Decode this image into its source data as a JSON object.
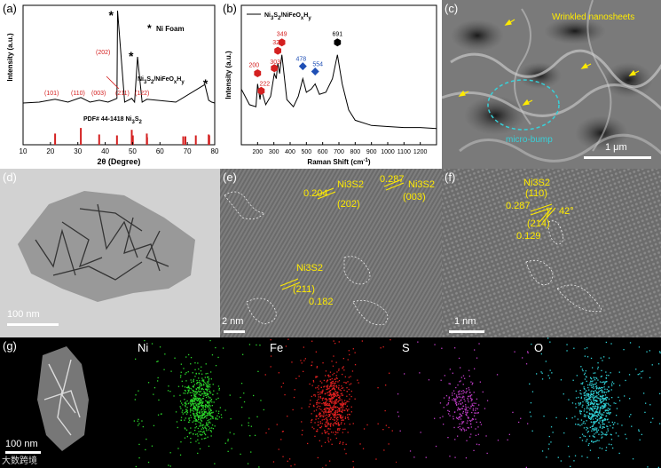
{
  "panels": {
    "a": {
      "label": "(a)",
      "legend_foam": "Ni Foam",
      "sample_label": "Ni3S2/NiFeOxHy",
      "pdf_label": "PDF# 44-1418 Ni3S2",
      "peak_labels": [
        "(101)",
        "(110)",
        "(003)",
        "(202)",
        "(211)",
        "(122)"
      ]
    },
    "b": {
      "label": "(b)",
      "legend": "Ni3S2/NiFeOxHy",
      "peak_labels": [
        "200",
        "222",
        "303",
        "324",
        "349",
        "478",
        "554",
        "691"
      ]
    },
    "c": {
      "label": "(c)",
      "annot_wrinkled": "Wrinkled nanosheets",
      "annot_bump": "micro-bump",
      "scale_bar": "1 μm"
    },
    "d": {
      "label": "(d)",
      "scale_bar": "100 nm"
    },
    "e": {
      "label": "(e)",
      "spacing_1": "0.204",
      "phase_1": "Ni3S2",
      "plane_1": "(202)",
      "spacing_2": "0.287",
      "phase_2": "Ni3S2",
      "plane_2": "(003)",
      "phase_3": "Ni3S2",
      "plane_3": "(211)",
      "spacing_3": "0.182",
      "scale_bar": "2 nm"
    },
    "f": {
      "label": "(f)",
      "phase": "Ni3S2",
      "plane_1": "(110)",
      "spacing_1": "0.287",
      "angle": "42°",
      "plane_2": "(214)",
      "spacing_2": "0.129",
      "scale_bar": "1 nm"
    },
    "g": {
      "label": "(g)",
      "scale_bar": "100 nm",
      "elements": [
        "Ni",
        "Fe",
        "S",
        "O"
      ],
      "logo": "大数跨境"
    }
  },
  "colors": {
    "red": "#d42020",
    "blue": "#1f4fb5",
    "yellow": "#ffeb00",
    "cyan": "#38d0d8",
    "ni_map": "#2bd82b",
    "fe_map": "#e02020",
    "s_map": "#c03cc8",
    "o_map": "#30d2d8"
  },
  "chart_data": [
    {
      "type": "line",
      "panel": "a",
      "xlabel": "2θ (Degree)",
      "ylabel": "Intensity (a.u.)",
      "xlim": [
        10,
        80
      ],
      "xticks": [
        10,
        20,
        30,
        40,
        50,
        60,
        70,
        80
      ],
      "series": [
        {
          "name": "Ni3S2/NiFeOxHy",
          "x": [
            10,
            21.7,
            31.1,
            37.8,
            44.3,
            44.5,
            49.7,
            51.8,
            55.2,
            76.4,
            77.8,
            80
          ],
          "y": [
            0,
            0.04,
            0.06,
            0.03,
            0.05,
            1.0,
            0.05,
            0.5,
            0.04,
            0.2,
            0.03,
            0
          ]
        }
      ],
      "reference_lines": {
        "name": "PDF# 44-1418 Ni3S2",
        "x": [
          21.7,
          31.1,
          37.8,
          44.3,
          49.7,
          50.1,
          55.2,
          55.3,
          68.5,
          69.3,
          73.1,
          77.8,
          78.0
        ],
        "height": [
          0.6,
          0.9,
          0.55,
          0.5,
          0.8,
          0.5,
          0.6,
          0.4,
          0.45,
          0.45,
          0.5,
          0.55,
          0.5
        ]
      },
      "foam_peaks_x": [
        44.5,
        51.8,
        76.4
      ]
    },
    {
      "type": "line",
      "panel": "b",
      "xlabel": "Raman Shift (cm-1)",
      "ylabel": "Intensity (a.u.)",
      "xlim": [
        100,
        1300
      ],
      "xticks": [
        200,
        300,
        400,
        500,
        600,
        700,
        800,
        900,
        1000,
        1100,
        1200
      ],
      "series": [
        {
          "name": "Ni3S2/NiFeOxHy",
          "x": [
            100,
            150,
            190,
            200,
            215,
            222,
            250,
            280,
            303,
            315,
            324,
            335,
            349,
            380,
            420,
            450,
            478,
            500,
            530,
            554,
            580,
            620,
            660,
            691,
            720,
            760,
            800,
            900,
            1000,
            1100,
            1200,
            1300
          ],
          "y": [
            0.45,
            0.3,
            0.28,
            0.5,
            0.35,
            0.45,
            0.3,
            0.38,
            0.6,
            0.55,
            0.7,
            0.6,
            0.78,
            0.35,
            0.28,
            0.38,
            0.55,
            0.42,
            0.45,
            0.5,
            0.4,
            0.42,
            0.55,
            0.78,
            0.5,
            0.25,
            0.15,
            0.1,
            0.09,
            0.08,
            0.08,
            0.07
          ]
        }
      ],
      "markers": [
        {
          "x": 200,
          "label": "200",
          "shape": "hexagon",
          "color": "#d42020"
        },
        {
          "x": 222,
          "label": "222",
          "shape": "hexagon",
          "color": "#d42020"
        },
        {
          "x": 303,
          "label": "303",
          "shape": "hexagon",
          "color": "#d42020"
        },
        {
          "x": 324,
          "label": "324",
          "shape": "hexagon",
          "color": "#d42020"
        },
        {
          "x": 349,
          "label": "349",
          "shape": "hexagon",
          "color": "#d42020"
        },
        {
          "x": 478,
          "label": "478",
          "shape": "diamond",
          "color": "#1f4fb5"
        },
        {
          "x": 554,
          "label": "554",
          "shape": "diamond",
          "color": "#1f4fb5"
        },
        {
          "x": 691,
          "label": "691",
          "shape": "hexagon",
          "color": "#000000"
        }
      ]
    }
  ]
}
